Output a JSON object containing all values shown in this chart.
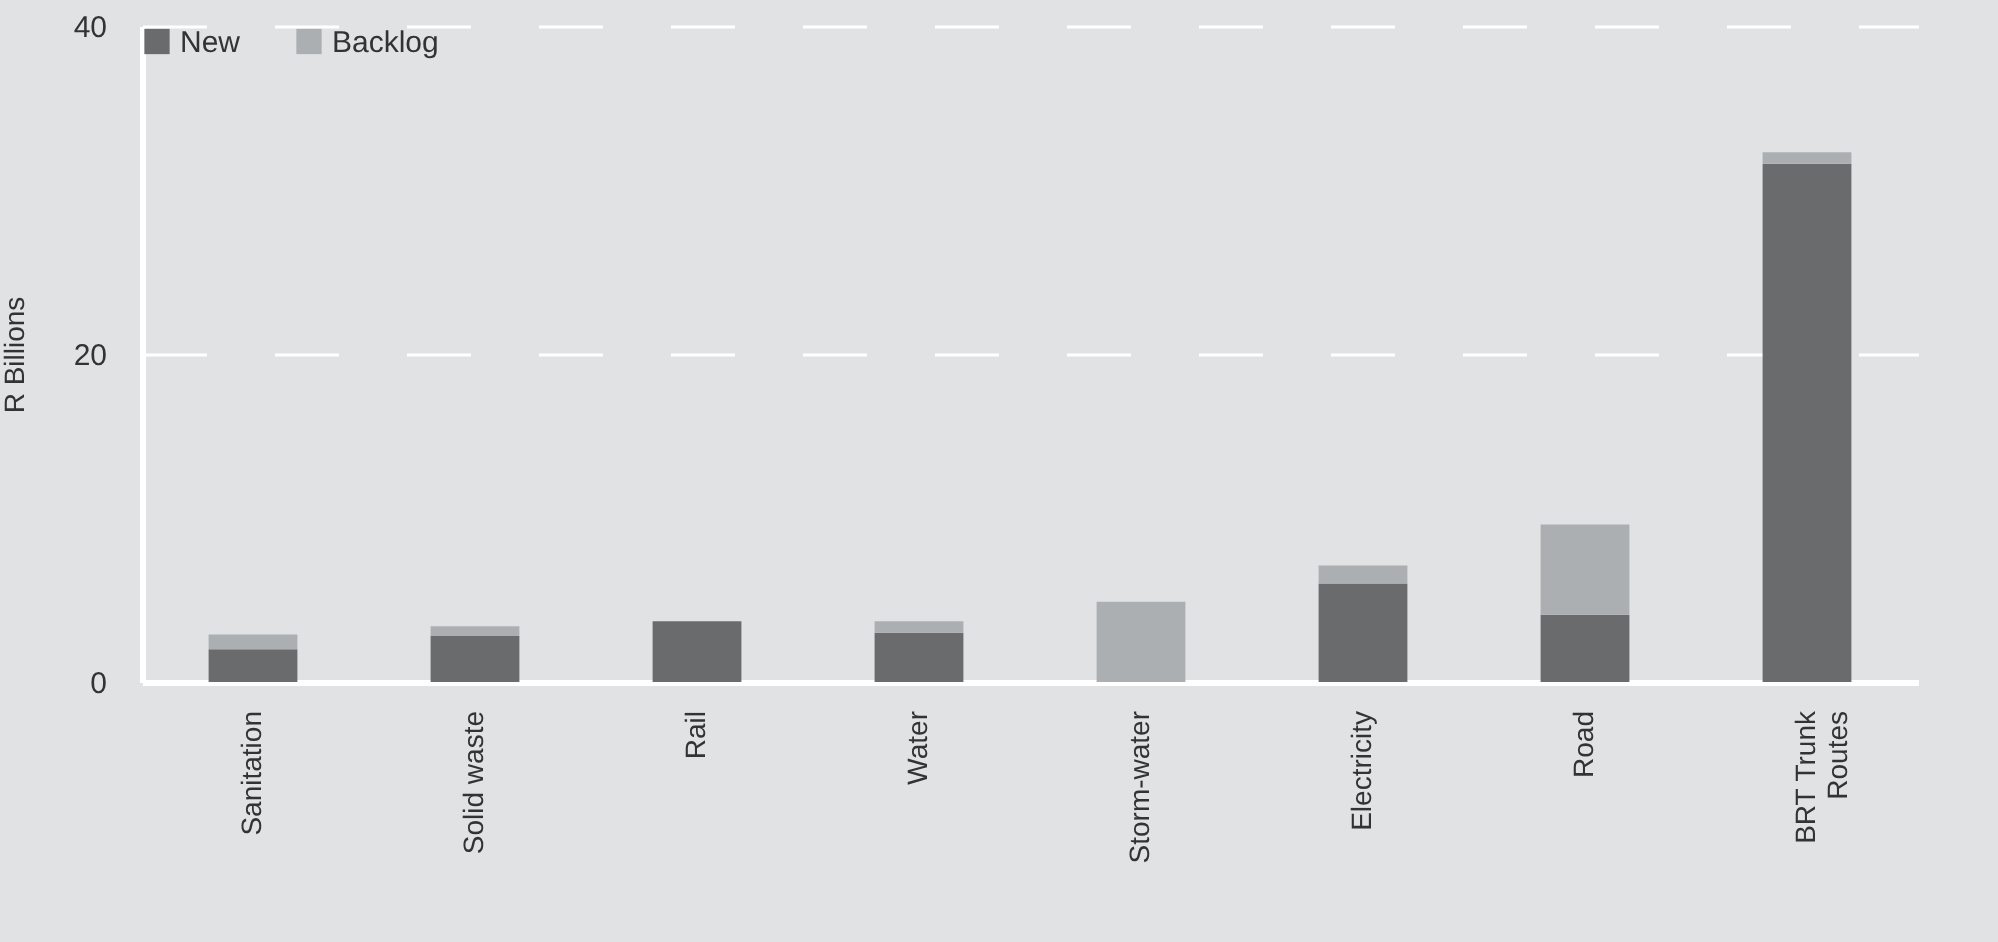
{
  "chart_data": {
    "type": "bar",
    "stacked": true,
    "ylabel": "R Billions",
    "categories": [
      "Sanitation",
      "Solid waste",
      "Rail",
      "Water",
      "Storm-water",
      "Electricity",
      "Road",
      "BRT Trunk Routes"
    ],
    "series": [
      {
        "name": "New",
        "color": "#6a6b6d",
        "values": [
          2.0,
          2.8,
          3.7,
          3.0,
          0,
          6.0,
          4.1,
          31.6
        ]
      },
      {
        "name": "Backlog",
        "color": "#acafb1",
        "values": [
          0.9,
          0.6,
          0,
          0.7,
          4.9,
          1.1,
          5.5,
          0.7
        ]
      }
    ],
    "ylim": [
      0,
      40
    ],
    "yticks": [
      0,
      20,
      40
    ],
    "grid": "y",
    "legend": "top left"
  }
}
